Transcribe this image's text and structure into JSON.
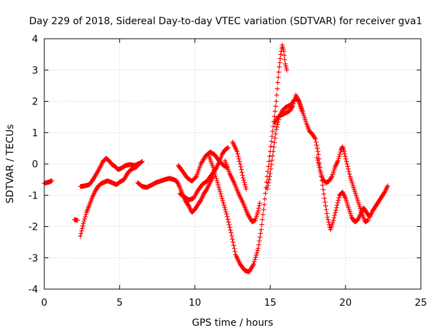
{
  "chart_data": {
    "type": "scatter",
    "title": "Day 229 of 2018, Sidereal Day-to-day VTEC variation (SDTVAR) for receiver gva1",
    "xlabel": "GPS time / hours",
    "ylabel": "SDTVAR / TECUs",
    "xlim": [
      0,
      25
    ],
    "ylim": [
      -4,
      4
    ],
    "xticks": [
      "0",
      "5",
      "10",
      "15",
      "20",
      "25"
    ],
    "yticks": [
      "-4",
      "-3",
      "-2",
      "-1",
      "0",
      "1",
      "2",
      "3",
      "4"
    ],
    "grid": true,
    "marker": "plus",
    "series": [
      {
        "color": "#ff0000",
        "segments": [
          [
            [
              0.0,
              -0.62
            ],
            [
              0.3,
              -0.58
            ],
            [
              0.5,
              -0.54
            ]
          ],
          [
            [
              2.0,
              -1.78
            ],
            [
              2.2,
              -1.8
            ]
          ],
          [
            [
              2.4,
              -2.3
            ],
            [
              2.6,
              -1.9
            ],
            [
              2.8,
              -1.55
            ],
            [
              3.0,
              -1.3
            ],
            [
              3.2,
              -1.05
            ],
            [
              3.4,
              -0.85
            ],
            [
              3.6,
              -0.7
            ],
            [
              3.8,
              -0.62
            ],
            [
              4.0,
              -0.58
            ],
            [
              4.2,
              -0.54
            ],
            [
              4.5,
              -0.6
            ],
            [
              4.8,
              -0.66
            ],
            [
              5.0,
              -0.58
            ],
            [
              5.3,
              -0.5
            ],
            [
              5.5,
              -0.32
            ],
            [
              5.7,
              -0.2
            ],
            [
              5.9,
              -0.14
            ],
            [
              6.1,
              -0.1
            ],
            [
              6.3,
              0.0
            ],
            [
              6.5,
              0.08
            ]
          ],
          [
            [
              2.4,
              -0.72
            ],
            [
              2.7,
              -0.7
            ],
            [
              3.0,
              -0.66
            ],
            [
              3.3,
              -0.45
            ],
            [
              3.6,
              -0.2
            ],
            [
              3.9,
              0.08
            ],
            [
              4.1,
              0.18
            ],
            [
              4.3,
              0.1
            ],
            [
              4.5,
              -0.02
            ],
            [
              4.7,
              -0.08
            ],
            [
              4.9,
              -0.18
            ],
            [
              5.1,
              -0.14
            ],
            [
              5.4,
              -0.05
            ],
            [
              5.7,
              -0.02
            ],
            [
              6.0,
              -0.05
            ],
            [
              6.3,
              0.02
            ]
          ],
          [
            [
              6.2,
              -0.6
            ],
            [
              6.5,
              -0.72
            ],
            [
              6.8,
              -0.75
            ],
            [
              7.1,
              -0.68
            ],
            [
              7.4,
              -0.6
            ],
            [
              7.7,
              -0.55
            ],
            [
              8.0,
              -0.5
            ],
            [
              8.3,
              -0.46
            ],
            [
              8.6,
              -0.5
            ],
            [
              8.8,
              -0.55
            ],
            [
              9.0,
              -0.75
            ],
            [
              9.2,
              -1.0
            ],
            [
              9.4,
              -1.2
            ],
            [
              9.6,
              -1.35
            ],
            [
              9.8,
              -1.55
            ],
            [
              10.0,
              -1.45
            ],
            [
              10.2,
              -1.3
            ],
            [
              10.4,
              -1.15
            ],
            [
              10.6,
              -0.95
            ],
            [
              10.8,
              -0.8
            ],
            [
              11.0,
              -0.6
            ],
            [
              11.2,
              -0.4
            ],
            [
              11.3,
              -0.2
            ]
          ],
          [
            [
              8.9,
              -0.05
            ],
            [
              9.2,
              -0.25
            ],
            [
              9.5,
              -0.45
            ],
            [
              9.8,
              -0.55
            ],
            [
              10.1,
              -0.4
            ],
            [
              10.4,
              0.0
            ],
            [
              10.7,
              0.25
            ],
            [
              11.0,
              0.38
            ],
            [
              11.3,
              0.3
            ],
            [
              11.6,
              0.1
            ],
            [
              11.9,
              -0.05
            ],
            [
              12.1,
              -0.1
            ]
          ],
          [
            [
              9.0,
              -0.95
            ],
            [
              9.3,
              -1.05
            ],
            [
              9.6,
              -1.15
            ],
            [
              9.9,
              -1.1
            ],
            [
              10.2,
              -0.85
            ],
            [
              10.5,
              -0.65
            ],
            [
              10.8,
              -0.55
            ],
            [
              11.1,
              -0.35
            ],
            [
              11.4,
              -0.15
            ],
            [
              11.6,
              0.05
            ],
            [
              11.8,
              0.3
            ],
            [
              12.0,
              0.45
            ],
            [
              12.2,
              0.52
            ]
          ],
          [
            [
              10.9,
              0.3
            ],
            [
              11.2,
              -0.1
            ],
            [
              11.5,
              -0.6
            ],
            [
              11.8,
              -1.1
            ],
            [
              12.1,
              -1.6
            ],
            [
              12.4,
              -2.2
            ],
            [
              12.7,
              -2.9
            ],
            [
              13.0,
              -3.2
            ],
            [
              13.3,
              -3.4
            ],
            [
              13.6,
              -3.45
            ],
            [
              13.9,
              -3.2
            ],
            [
              14.2,
              -2.7
            ],
            [
              14.4,
              -2.1
            ],
            [
              14.6,
              -1.3
            ],
            [
              14.8,
              -0.4
            ],
            [
              15.0,
              0.4
            ],
            [
              15.2,
              1.2
            ],
            [
              15.4,
              2.0
            ],
            [
              15.5,
              2.6
            ],
            [
              15.6,
              3.1
            ],
            [
              15.7,
              3.5
            ],
            [
              15.8,
              3.8
            ],
            [
              15.9,
              3.6
            ],
            [
              16.0,
              3.2
            ],
            [
              16.1,
              3.0
            ]
          ],
          [
            [
              12.0,
              0.1
            ],
            [
              12.3,
              -0.3
            ],
            [
              12.6,
              -0.6
            ],
            [
              12.9,
              -0.95
            ],
            [
              13.2,
              -1.25
            ],
            [
              13.5,
              -1.6
            ],
            [
              13.8,
              -1.85
            ],
            [
              14.0,
              -1.8
            ],
            [
              14.2,
              -1.5
            ],
            [
              14.3,
              -1.25
            ]
          ],
          [
            [
              12.5,
              0.7
            ],
            [
              12.8,
              0.4
            ],
            [
              13.0,
              0.0
            ],
            [
              13.2,
              -0.45
            ],
            [
              13.4,
              -0.8
            ]
          ],
          [
            [
              14.8,
              -0.8
            ],
            [
              15.0,
              -0.3
            ],
            [
              15.2,
              0.4
            ],
            [
              15.4,
              1.1
            ],
            [
              15.6,
              1.5
            ],
            [
              15.8,
              1.7
            ],
            [
              16.0,
              1.8
            ],
            [
              16.2,
              1.85
            ],
            [
              16.4,
              1.9
            ],
            [
              16.6,
              2.05
            ],
            [
              16.8,
              2.1
            ],
            [
              17.0,
              1.9
            ],
            [
              17.2,
              1.6
            ],
            [
              17.4,
              1.3
            ],
            [
              17.6,
              1.05
            ],
            [
              17.8,
              0.95
            ],
            [
              18.0,
              0.8
            ],
            [
              18.2,
              0.3
            ],
            [
              18.4,
              -0.4
            ],
            [
              18.6,
              -1.1
            ],
            [
              18.8,
              -1.7
            ],
            [
              19.0,
              -2.1
            ],
            [
              19.2,
              -1.8
            ],
            [
              19.4,
              -1.4
            ],
            [
              19.6,
              -1.0
            ],
            [
              19.8,
              -0.9
            ],
            [
              20.0,
              -1.1
            ],
            [
              20.2,
              -1.4
            ],
            [
              20.4,
              -1.7
            ],
            [
              20.6,
              -1.85
            ],
            [
              20.8,
              -1.8
            ],
            [
              21.0,
              -1.6
            ],
            [
              21.2,
              -1.4
            ],
            [
              21.4,
              -1.55
            ],
            [
              21.6,
              -1.7
            ],
            [
              21.8,
              -1.5
            ],
            [
              22.0,
              -1.35
            ],
            [
              22.2,
              -1.2
            ],
            [
              22.4,
              -1.05
            ],
            [
              22.6,
              -0.9
            ],
            [
              22.8,
              -0.7
            ]
          ],
          [
            [
              15.3,
              1.3
            ],
            [
              15.5,
              1.5
            ],
            [
              15.7,
              1.55
            ],
            [
              15.9,
              1.6
            ],
            [
              16.1,
              1.65
            ],
            [
              16.3,
              1.7
            ],
            [
              16.5,
              1.85
            ],
            [
              16.7,
              2.2
            ],
            [
              16.9,
              2.0
            ],
            [
              17.1,
              1.7
            ]
          ],
          [
            [
              18.1,
              0.2
            ],
            [
              18.3,
              -0.2
            ],
            [
              18.5,
              -0.5
            ],
            [
              18.7,
              -0.6
            ],
            [
              18.9,
              -0.55
            ],
            [
              19.1,
              -0.4
            ],
            [
              19.3,
              -0.1
            ],
            [
              19.5,
              0.1
            ],
            [
              19.7,
              0.45
            ],
            [
              19.8,
              0.55
            ],
            [
              19.9,
              0.4
            ],
            [
              20.1,
              0.0
            ],
            [
              20.3,
              -0.4
            ],
            [
              20.5,
              -0.7
            ],
            [
              20.7,
              -1.0
            ],
            [
              20.9,
              -1.3
            ],
            [
              21.1,
              -1.6
            ],
            [
              21.3,
              -1.85
            ],
            [
              21.5,
              -1.8
            ]
          ]
        ]
      }
    ]
  }
}
